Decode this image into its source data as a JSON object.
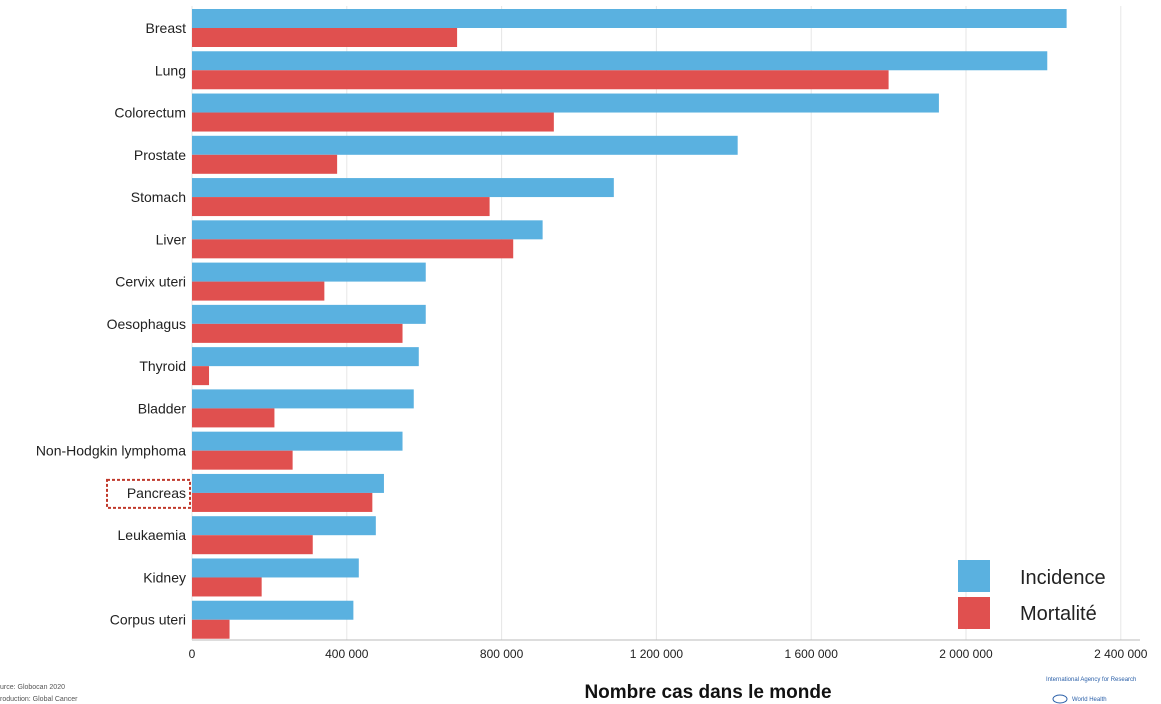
{
  "chart_data": {
    "type": "bar",
    "orientation": "horizontal",
    "title": "",
    "xlabel": "Nombre cas dans le monde",
    "ylabel": "",
    "xlim": [
      0,
      2500000
    ],
    "x_ticks": [
      0,
      400000,
      800000,
      1200000,
      1600000,
      2000000,
      2400000
    ],
    "x_tick_labels": [
      "0",
      "400 000",
      "800 000",
      "1 200 000",
      "1 600 000",
      "2 000 000",
      "2 400 000"
    ],
    "grid": true,
    "legend_position": "bottom-right",
    "categories": [
      "Breast",
      "Lung",
      "Colorectum",
      "Prostate",
      "Stomach",
      "Liver",
      "Cervix uteri",
      "Oesophagus",
      "Thyroid",
      "Bladder",
      "Non-Hodgkin lymphoma",
      "Pancreas",
      "Leukaemia",
      "Kidney",
      "Corpus uteri"
    ],
    "highlighted_category": "Pancreas",
    "series": [
      {
        "name": "Incidence",
        "color": "#5ab1e0",
        "values": [
          2260000,
          2210000,
          1930000,
          1410000,
          1090000,
          906000,
          604000,
          604000,
          586000,
          573000,
          544000,
          496000,
          475000,
          431000,
          417000
        ]
      },
      {
        "name": "Mortalité",
        "color": "#e0504f",
        "values": [
          685000,
          1800000,
          935000,
          375000,
          769000,
          830000,
          342000,
          544000,
          44000,
          213000,
          260000,
          466000,
          312000,
          180000,
          97000
        ]
      }
    ]
  },
  "footer": {
    "source_line1": "urce: Globocan 2020",
    "source_line2": "roduction: Global Cancer",
    "logo_line1": "International Agency for Research",
    "logo_line2": "World Health"
  }
}
